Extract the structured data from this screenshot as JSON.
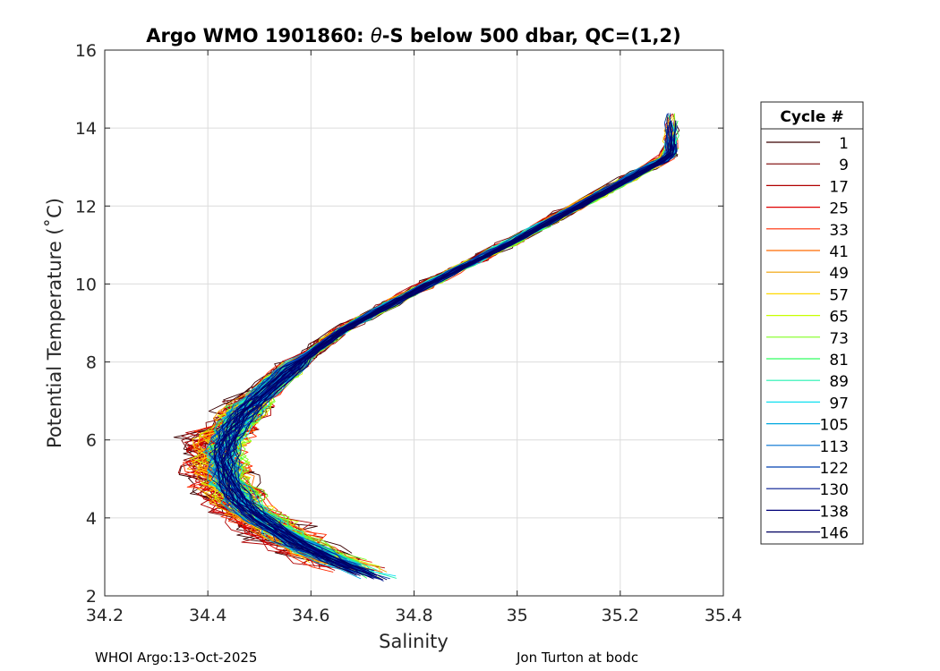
{
  "chart_data": {
    "type": "line",
    "title": "Argo WMO 1901860: θ-S below 500 dbar,  QC=(1,2)",
    "title_parts": {
      "prefix": "Argo WMO 1901860: ",
      "theta": "θ",
      "suffix": "-S below 500 dbar,  QC=(1,2)"
    },
    "xlabel": "Salinity",
    "ylabel": "Potential Temperature (˚C)",
    "xlim": [
      34.2,
      35.4
    ],
    "ylim": [
      2,
      16
    ],
    "xticks": [
      34.2,
      34.4,
      34.6,
      34.8,
      35,
      35.2,
      35.4
    ],
    "xtick_labels": [
      "34.2",
      "34.4",
      "34.6",
      "34.8",
      "35",
      "35.2",
      "35.4"
    ],
    "yticks": [
      2,
      4,
      6,
      8,
      10,
      12,
      14,
      16
    ],
    "ytick_labels": [
      "2",
      "4",
      "6",
      "8",
      "10",
      "12",
      "14",
      "16"
    ],
    "grid": true,
    "legend_title": "Cycle #",
    "legend_position": "outside-right",
    "colormap": "jet",
    "series": [
      {
        "name": "1",
        "color": "#3a0000"
      },
      {
        "name": "9",
        "color": "#7a0000"
      },
      {
        "name": "17",
        "color": "#b00000"
      },
      {
        "name": "25",
        "color": "#e00000"
      },
      {
        "name": "33",
        "color": "#ff2a00"
      },
      {
        "name": "41",
        "color": "#ff6a00"
      },
      {
        "name": "49",
        "color": "#f0a000"
      },
      {
        "name": "57",
        "color": "#ffd800"
      },
      {
        "name": "65",
        "color": "#c8ff00"
      },
      {
        "name": "73",
        "color": "#80ff20"
      },
      {
        "name": "81",
        "color": "#30ff60"
      },
      {
        "name": "89",
        "color": "#20f0b0"
      },
      {
        "name": "97",
        "color": "#10e0f0"
      },
      {
        "name": "105",
        "color": "#00a8e0"
      },
      {
        "name": "113",
        "color": "#0070d0"
      },
      {
        "name": "122",
        "color": "#0040b0"
      },
      {
        "name": "130",
        "color": "#001890"
      },
      {
        "name": "138",
        "color": "#000078"
      },
      {
        "name": "146",
        "color": "#000060"
      }
    ],
    "mean_profile": {
      "salinity": [
        34.76,
        34.66,
        34.58,
        34.52,
        34.47,
        34.44,
        34.43,
        34.44,
        34.47,
        34.52,
        34.58,
        34.66,
        34.8,
        34.98,
        35.12,
        35.3
      ],
      "temperature": [
        2.3,
        2.8,
        3.3,
        3.8,
        4.3,
        4.9,
        5.5,
        6.1,
        6.7,
        7.3,
        8.0,
        8.8,
        9.8,
        11.0,
        12.0,
        13.3
      ]
    }
  },
  "footer": {
    "left": "WHOI Argo:13-Oct-2025",
    "right": "Jon Turton at bodc"
  }
}
